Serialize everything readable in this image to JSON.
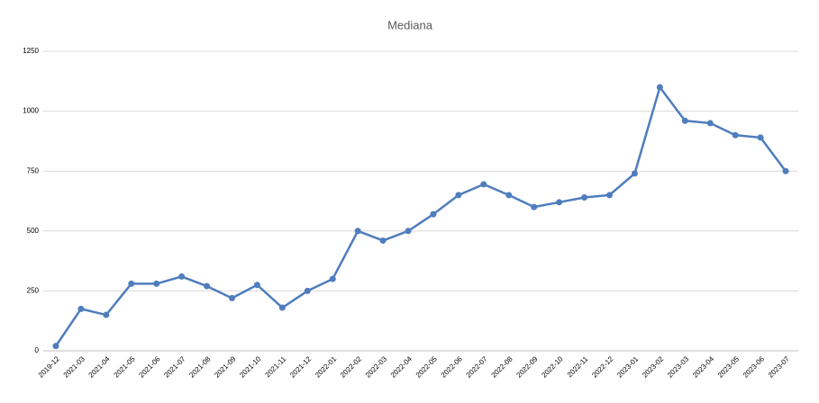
{
  "chart_data": {
    "type": "line",
    "title": "Mediana",
    "categories": [
      "2019-12",
      "2021-03",
      "2021-04",
      "2021-05",
      "2021-06",
      "2021-07",
      "2021-08",
      "2021-09",
      "2021-10",
      "2021-11",
      "2021-12",
      "2022-01",
      "2022-02",
      "2022-03",
      "2022-04",
      "2022-05",
      "2022-06",
      "2022-07",
      "2022-08",
      "2022-09",
      "2022-10",
      "2022-11",
      "2022-12",
      "2023-01",
      "2023-02",
      "2023-03",
      "2023-04",
      "2023-05",
      "2023-06",
      "2023-07"
    ],
    "series": [
      {
        "name": "Mediana",
        "color": "#4f7dbd",
        "values": [
          20,
          175,
          150,
          280,
          280,
          310,
          270,
          220,
          275,
          180,
          250,
          300,
          500,
          460,
          500,
          570,
          650,
          695,
          650,
          600,
          620,
          640,
          650,
          740,
          1100,
          960,
          950,
          900,
          890,
          750
        ]
      }
    ],
    "ylim": [
      0,
      1250
    ],
    "yticks": [
      0,
      250,
      500,
      750,
      1000,
      1250
    ],
    "grid": true
  }
}
